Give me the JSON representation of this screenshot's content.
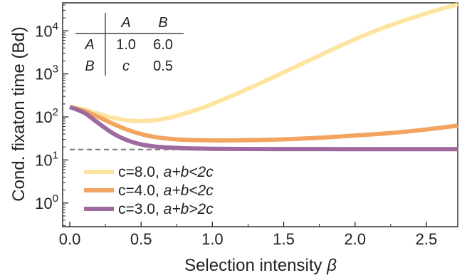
{
  "chart_data": {
    "type": "line",
    "title": "",
    "xlabel": "Selection intensity",
    "xlabel_symbol": "β",
    "ylabel": "Cond. fixaton time (Bd)",
    "yscale": "log",
    "xlim": [
      -0.05,
      2.72
    ],
    "ylim_log10": [
      -0.55,
      4.65
    ],
    "x_ticks": [
      {
        "value": 0.0,
        "label": "0.0"
      },
      {
        "value": 0.5,
        "label": "0.5"
      },
      {
        "value": 1.0,
        "label": "1.0"
      },
      {
        "value": 1.5,
        "label": "1.5"
      },
      {
        "value": 2.0,
        "label": "2.0"
      },
      {
        "value": 2.5,
        "label": "2.5"
      }
    ],
    "y_ticks": [
      {
        "exponent": 0,
        "base": "10",
        "sup": "0"
      },
      {
        "exponent": 1,
        "base": "10",
        "sup": "1"
      },
      {
        "exponent": 2,
        "base": "10",
        "sup": "2"
      },
      {
        "exponent": 3,
        "base": "10",
        "sup": "3"
      },
      {
        "exponent": 4,
        "base": "10",
        "sup": "4"
      }
    ],
    "grid": false,
    "legend_position": "bottom-left",
    "series": [
      {
        "name_value": "c=8.0, ",
        "name_cond": "a+b<2c",
        "color": "#fde4a0",
        "x": [
          0.0,
          0.1,
          0.2,
          0.3,
          0.4,
          0.5,
          0.6,
          0.7,
          0.8,
          0.9,
          1.0,
          1.2,
          1.4,
          1.6,
          1.8,
          2.0,
          2.2,
          2.4,
          2.6,
          2.72
        ],
        "y": [
          170,
          148,
          118,
          96,
          84,
          80,
          84,
          96,
          118,
          150,
          200,
          380,
          760,
          1550,
          3200,
          6400,
          11800,
          20000,
          32000,
          41000
        ]
      },
      {
        "name_value": "c=4.0, ",
        "name_cond": "a+b<2c",
        "color": "#f3a460",
        "x": [
          0.0,
          0.1,
          0.2,
          0.3,
          0.4,
          0.5,
          0.6,
          0.7,
          0.8,
          0.9,
          1.0,
          1.1,
          1.2,
          1.4,
          1.6,
          1.8,
          2.0,
          2.2,
          2.4,
          2.6,
          2.72
        ],
        "y": [
          170,
          138,
          100,
          70,
          51,
          40,
          34,
          31,
          29.5,
          28.8,
          28.5,
          28.5,
          28.7,
          29.5,
          31,
          33.5,
          37,
          41,
          47,
          56,
          63
        ]
      },
      {
        "name_value": "c=3.0, ",
        "name_cond": "a+b>2c",
        "color": "#9e6a9e",
        "x": [
          0.0,
          0.1,
          0.2,
          0.3,
          0.4,
          0.5,
          0.6,
          0.7,
          0.8,
          0.9,
          1.0,
          1.2,
          1.4,
          1.6,
          1.8,
          2.0,
          2.2,
          2.4,
          2.6,
          2.72
        ],
        "y": [
          170,
          125,
          72,
          42,
          29,
          23,
          20.5,
          19.3,
          18.7,
          18.4,
          18.2,
          18.0,
          17.9,
          17.9,
          17.9,
          17.8,
          17.8,
          17.8,
          17.8,
          17.8
        ]
      }
    ],
    "reference_line": {
      "y": 17.5,
      "style": "dashed",
      "color": "#777777"
    }
  },
  "payoff_table": {
    "col_headers": [
      "A",
      "B"
    ],
    "rows": [
      {
        "header": "A",
        "values": [
          "1.0",
          "6.0"
        ]
      },
      {
        "header": "B",
        "values": [
          "c",
          "0.5"
        ]
      }
    ]
  }
}
